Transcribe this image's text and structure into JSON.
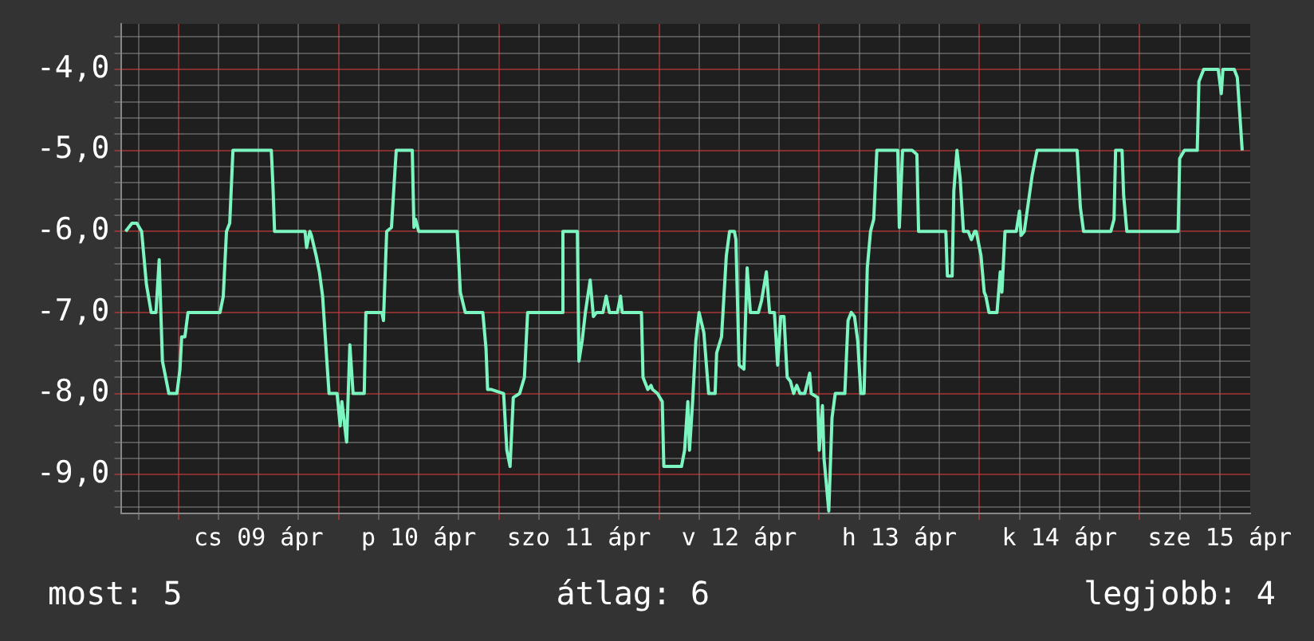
{
  "chart_data": {
    "type": "line",
    "legend": false,
    "grid": true,
    "marker": "none",
    "line_style": "solid",
    "xlim": [
      "--04-08T15:22",
      "--04-15T16:34"
    ],
    "xticks": [
      {
        "value": "--04-08T18:00",
        "label": null
      },
      {
        "value": "--04-09T00:00",
        "label": null
      },
      {
        "value": "--04-09T06:00",
        "label": null
      },
      {
        "value": "--04-09T12:00",
        "label": "cs 09 ápr"
      },
      {
        "value": "--04-09T18:00",
        "label": null
      },
      {
        "value": "--04-10T00:00",
        "label": null
      },
      {
        "value": "--04-10T06:00",
        "label": null
      },
      {
        "value": "--04-10T12:00",
        "label": "p 10 ápr"
      },
      {
        "value": "--04-10T18:00",
        "label": null
      },
      {
        "value": "--04-11T00:00",
        "label": null
      },
      {
        "value": "--04-11T06:00",
        "label": null
      },
      {
        "value": "--04-11T12:00",
        "label": "szo 11 ápr"
      },
      {
        "value": "--04-11T18:00",
        "label": null
      },
      {
        "value": "--04-12T00:00",
        "label": null
      },
      {
        "value": "--04-12T06:00",
        "label": null
      },
      {
        "value": "--04-12T12:00",
        "label": "v 12 ápr"
      },
      {
        "value": "--04-12T18:00",
        "label": null
      },
      {
        "value": "--04-13T00:00",
        "label": null
      },
      {
        "value": "--04-13T06:00",
        "label": null
      },
      {
        "value": "--04-13T12:00",
        "label": "h 13 ápr"
      },
      {
        "value": "--04-13T18:00",
        "label": null
      },
      {
        "value": "--04-14T00:00",
        "label": null
      },
      {
        "value": "--04-14T06:00",
        "label": null
      },
      {
        "value": "--04-14T12:00",
        "label": "k 14 ápr"
      },
      {
        "value": "--04-14T18:00",
        "label": null
      },
      {
        "value": "--04-15T00:00",
        "label": null
      },
      {
        "value": "--04-15T06:00",
        "label": null
      },
      {
        "value": "--04-15T12:00",
        "label": "sze 15 ápr"
      }
    ],
    "ylim": [
      -9.48,
      -3.44
    ],
    "yticks": [
      {
        "value": -9.4,
        "label": null
      },
      {
        "value": -9.2,
        "label": null
      },
      {
        "value": -9,
        "label": "-9,0"
      },
      {
        "value": -8.8,
        "label": null
      },
      {
        "value": -8.6,
        "label": null
      },
      {
        "value": -8.4,
        "label": null
      },
      {
        "value": -8.2,
        "label": null
      },
      {
        "value": -8,
        "label": "-8,0"
      },
      {
        "value": -7.8,
        "label": null
      },
      {
        "value": -7.6,
        "label": null
      },
      {
        "value": -7.4,
        "label": null
      },
      {
        "value": -7.2,
        "label": null
      },
      {
        "value": -7,
        "label": "-7,0"
      },
      {
        "value": -6.8,
        "label": null
      },
      {
        "value": -6.6,
        "label": null
      },
      {
        "value": -6.4,
        "label": null
      },
      {
        "value": -6.2,
        "label": null
      },
      {
        "value": -6,
        "label": "-6,0"
      },
      {
        "value": -5.8,
        "label": null
      },
      {
        "value": -5.6,
        "label": null
      },
      {
        "value": -5.4,
        "label": null
      },
      {
        "value": -5.2,
        "label": null
      },
      {
        "value": -5,
        "label": "-5,0"
      },
      {
        "value": -4.8,
        "label": null
      },
      {
        "value": -4.6,
        "label": null
      },
      {
        "value": -4.4,
        "label": null
      },
      {
        "value": -4.2,
        "label": null
      },
      {
        "value": -4,
        "label": "-4,0"
      },
      {
        "value": -3.8,
        "label": null
      },
      {
        "value": -3.6,
        "label": null
      }
    ],
    "annotations": [
      "most: 5",
      "átlag: 6",
      "legjobb: 4"
    ],
    "series": [
      {
        "color": "#7df5c0",
        "x": [
          "--04-08T16:05",
          "--04-08T17:02",
          "--04-08T17:46",
          "--04-08T18:29",
          "--04-08T19:12",
          "--04-08T19:55",
          "--04-08T20:38",
          "--04-08T21:07",
          "--04-08T21:22",
          "--04-08T21:36",
          "--04-08T22:05",
          "--04-08T22:34",
          "--04-08T23:46",
          "--04-09T00:14",
          "--04-09T00:29",
          "--04-09T00:58",
          "--04-09T01:26",
          "--04-09T06:14",
          "--04-09T06:43",
          "--04-09T07:12",
          "--04-09T07:41",
          "--04-09T08:10",
          "--04-09T13:55",
          "--04-09T14:10",
          "--04-09T14:24",
          "--04-09T18:58",
          "--04-09T19:12",
          "--04-09T19:41",
          "--04-09T19:55",
          "--04-09T20:38",
          "--04-09T21:07",
          "--04-09T21:36",
          "--04-09T22:19",
          "--04-09T22:34",
          "--04-09T23:46",
          "--04-10T00:14",
          "--04-10T00:29",
          "--04-10T01:12",
          "--04-10T01:41",
          "--04-10T02:10",
          "--04-10T03:50",
          "--04-10T04:05",
          "--04-10T06:29",
          "--04-10T06:43",
          "--04-10T07:12",
          "--04-10T07:55",
          "--04-10T08:24",
          "--04-10T08:38",
          "--04-10T11:02",
          "--04-10T11:17",
          "--04-10T11:31",
          "--04-10T12:00",
          "--04-10T17:46",
          "--04-10T18:14",
          "--04-10T18:58",
          "--04-10T21:36",
          "--04-10T22:05",
          "--04-10T22:19",
          "--04-10T22:48",
          "--04-11T00:43",
          "--04-11T01:12",
          "--04-11T01:41",
          "--04-11T02:10",
          "--04-11T03:07",
          "--04-11T03:50",
          "--04-11T04:19",
          "--04-11T09:22",
          "--04-11T09:36",
          "--04-11T11:46",
          "--04-11T12:00",
          "--04-11T12:29",
          "--04-11T12:58",
          "--04-11T13:41",
          "--04-11T14:10",
          "--04-11T14:38",
          "--04-11T15:36",
          "--04-11T16:05",
          "--04-11T16:34",
          "--04-11T17:46",
          "--04-11T18:14",
          "--04-11T18:29",
          "--04-11T21:22",
          "--04-11T21:36",
          "--04-11T22:19",
          "--04-11T22:48",
          "--04-11T23:02",
          "--04-11T23:46",
          "--04-12T00:29",
          "--04-12T00:43",
          "--04-12T03:22",
          "--04-12T03:50",
          "--04-12T04:19",
          "--04-12T04:34",
          "--04-12T05:02",
          "--04-12T05:31",
          "--04-12T06:00",
          "--04-12T06:43",
          "--04-12T07:26",
          "--04-12T08:24",
          "--04-12T08:38",
          "--04-12T09:22",
          "--04-12T10:05",
          "--04-12T10:34",
          "--04-12T11:17",
          "--04-12T11:31",
          "--04-12T12:00",
          "--04-12T12:43",
          "--04-12T13:12",
          "--04-12T13:41",
          "--04-12T14:53",
          "--04-12T15:22",
          "--04-12T16:05",
          "--04-12T16:34",
          "--04-12T17:17",
          "--04-12T17:46",
          "--04-12T18:14",
          "--04-12T18:43",
          "--04-12T19:12",
          "--04-12T19:41",
          "--04-12T20:10",
          "--04-12T20:38",
          "--04-12T21:07",
          "--04-12T21:50",
          "--04-12T22:34",
          "--04-12T22:48",
          "--04-12T23:46",
          "--04-13T00:00",
          "--04-13T00:29",
          "--04-13T00:43",
          "--04-13T01:26",
          "--04-13T01:55",
          "--04-13T02:24",
          "--04-13T03:50",
          "--04-13T04:19",
          "--04-13T04:48",
          "--04-13T05:17",
          "--04-13T05:46",
          "--04-13T06:14",
          "--04-13T06:43",
          "--04-13T07:12",
          "--04-13T07:41",
          "--04-13T08:10",
          "--04-13T08:38",
          "--04-13T11:46",
          "--04-13T12:00",
          "--04-13T12:29",
          "--04-13T13:55",
          "--04-13T14:38",
          "--04-13T14:53",
          "--04-13T18:58",
          "--04-13T19:12",
          "--04-13T19:55",
          "--04-13T20:10",
          "--04-13T20:38",
          "--04-13T21:07",
          "--04-13T21:36",
          "--04-13T22:19",
          "--04-13T22:48",
          "--04-13T23:17",
          "--04-13T23:31",
          "--04-14T00:14",
          "--04-14T00:43",
          "--04-14T00:58",
          "--04-14T01:26",
          "--04-14T02:38",
          "--04-14T03:07",
          "--04-14T03:22",
          "--04-14T03:50",
          "--04-14T05:31",
          "--04-14T06:00",
          "--04-14T06:14",
          "--04-14T06:43",
          "--04-14T07:55",
          "--04-14T08:38",
          "--04-14T14:38",
          "--04-14T15:07",
          "--04-14T15:36",
          "--04-14T19:41",
          "--04-14T20:10",
          "--04-14T20:24",
          "--04-14T21:22",
          "--04-14T21:36",
          "--04-14T22:05",
          "--04-15T05:46",
          "--04-15T06:00",
          "--04-15T06:43",
          "--04-15T08:38",
          "--04-15T08:53",
          "--04-15T09:36",
          "--04-15T11:46",
          "--04-15T12:14",
          "--04-15T12:29",
          "--04-15T14:10",
          "--04-15T14:38",
          "--04-15T15:22"
        ],
        "values": [
          -6.0,
          -5.9,
          -5.9,
          -6.0,
          -6.65,
          -7.0,
          -7.0,
          -6.35,
          -7.0,
          -7.6,
          -7.8,
          -8.0,
          -8.0,
          -7.7,
          -7.3,
          -7.3,
          -7.0,
          -7.0,
          -6.8,
          -6.0,
          -5.9,
          -5.0,
          -5.0,
          -5.45,
          -6.0,
          -6.0,
          -6.2,
          -6.0,
          -6.05,
          -6.3,
          -6.5,
          -6.8,
          -7.7,
          -8.0,
          -8.0,
          -8.4,
          -8.1,
          -8.6,
          -7.4,
          -8.0,
          -8.0,
          -7.0,
          -7.0,
          -7.1,
          -6.0,
          -5.95,
          -5.3,
          -5.0,
          -5.0,
          -5.95,
          -5.85,
          -6.0,
          -6.0,
          -6.75,
          -7.0,
          -7.0,
          -7.45,
          -7.95,
          -7.95,
          -8.0,
          -8.7,
          -8.9,
          -8.05,
          -8.0,
          -7.8,
          -7.0,
          -7.0,
          -6.0,
          -6.0,
          -7.6,
          -7.35,
          -7.0,
          -6.6,
          -7.05,
          -7.0,
          -7.0,
          -6.8,
          -7.0,
          -7.0,
          -6.8,
          -7.0,
          -7.0,
          -7.8,
          -7.95,
          -7.9,
          -7.95,
          -8.0,
          -8.1,
          -8.9,
          -8.9,
          -8.7,
          -8.1,
          -8.7,
          -8.1,
          -7.35,
          -7.0,
          -7.25,
          -8.0,
          -8.0,
          -7.5,
          -7.3,
          -6.3,
          -6.0,
          -6.0,
          -6.1,
          -7.65,
          -7.7,
          -6.45,
          -7.0,
          -7.0,
          -6.85,
          -6.5,
          -7.0,
          -7.0,
          -7.65,
          -7.05,
          -7.05,
          -7.8,
          -7.85,
          -8.0,
          -7.9,
          -8.0,
          -8.0,
          -7.75,
          -8.0,
          -8.05,
          -8.7,
          -8.15,
          -8.8,
          -9.45,
          -8.3,
          -8.0,
          -8.0,
          -7.1,
          -7.0,
          -7.05,
          -7.35,
          -8.0,
          -8.0,
          -6.45,
          -6.0,
          -5.85,
          -5.0,
          -5.0,
          -5.95,
          -5.0,
          -5.0,
          -5.05,
          -6.0,
          -6.0,
          -6.55,
          -6.55,
          -5.5,
          -5.0,
          -5.35,
          -6.0,
          -6.0,
          -6.1,
          -6.0,
          -6.0,
          -6.3,
          -6.75,
          -6.8,
          -7.0,
          -7.0,
          -6.5,
          -6.75,
          -6.0,
          -6.0,
          -5.75,
          -6.05,
          -6.0,
          -5.3,
          -5.0,
          -5.0,
          -5.7,
          -6.0,
          -6.0,
          -5.85,
          -5.0,
          -5.0,
          -5.55,
          -6.0,
          -6.0,
          -5.1,
          -5.0,
          -5.0,
          -4.15,
          -4.0,
          -4.0,
          -4.3,
          -4.0,
          -4.0,
          -4.1,
          -5.0
        ]
      }
    ]
  }
}
